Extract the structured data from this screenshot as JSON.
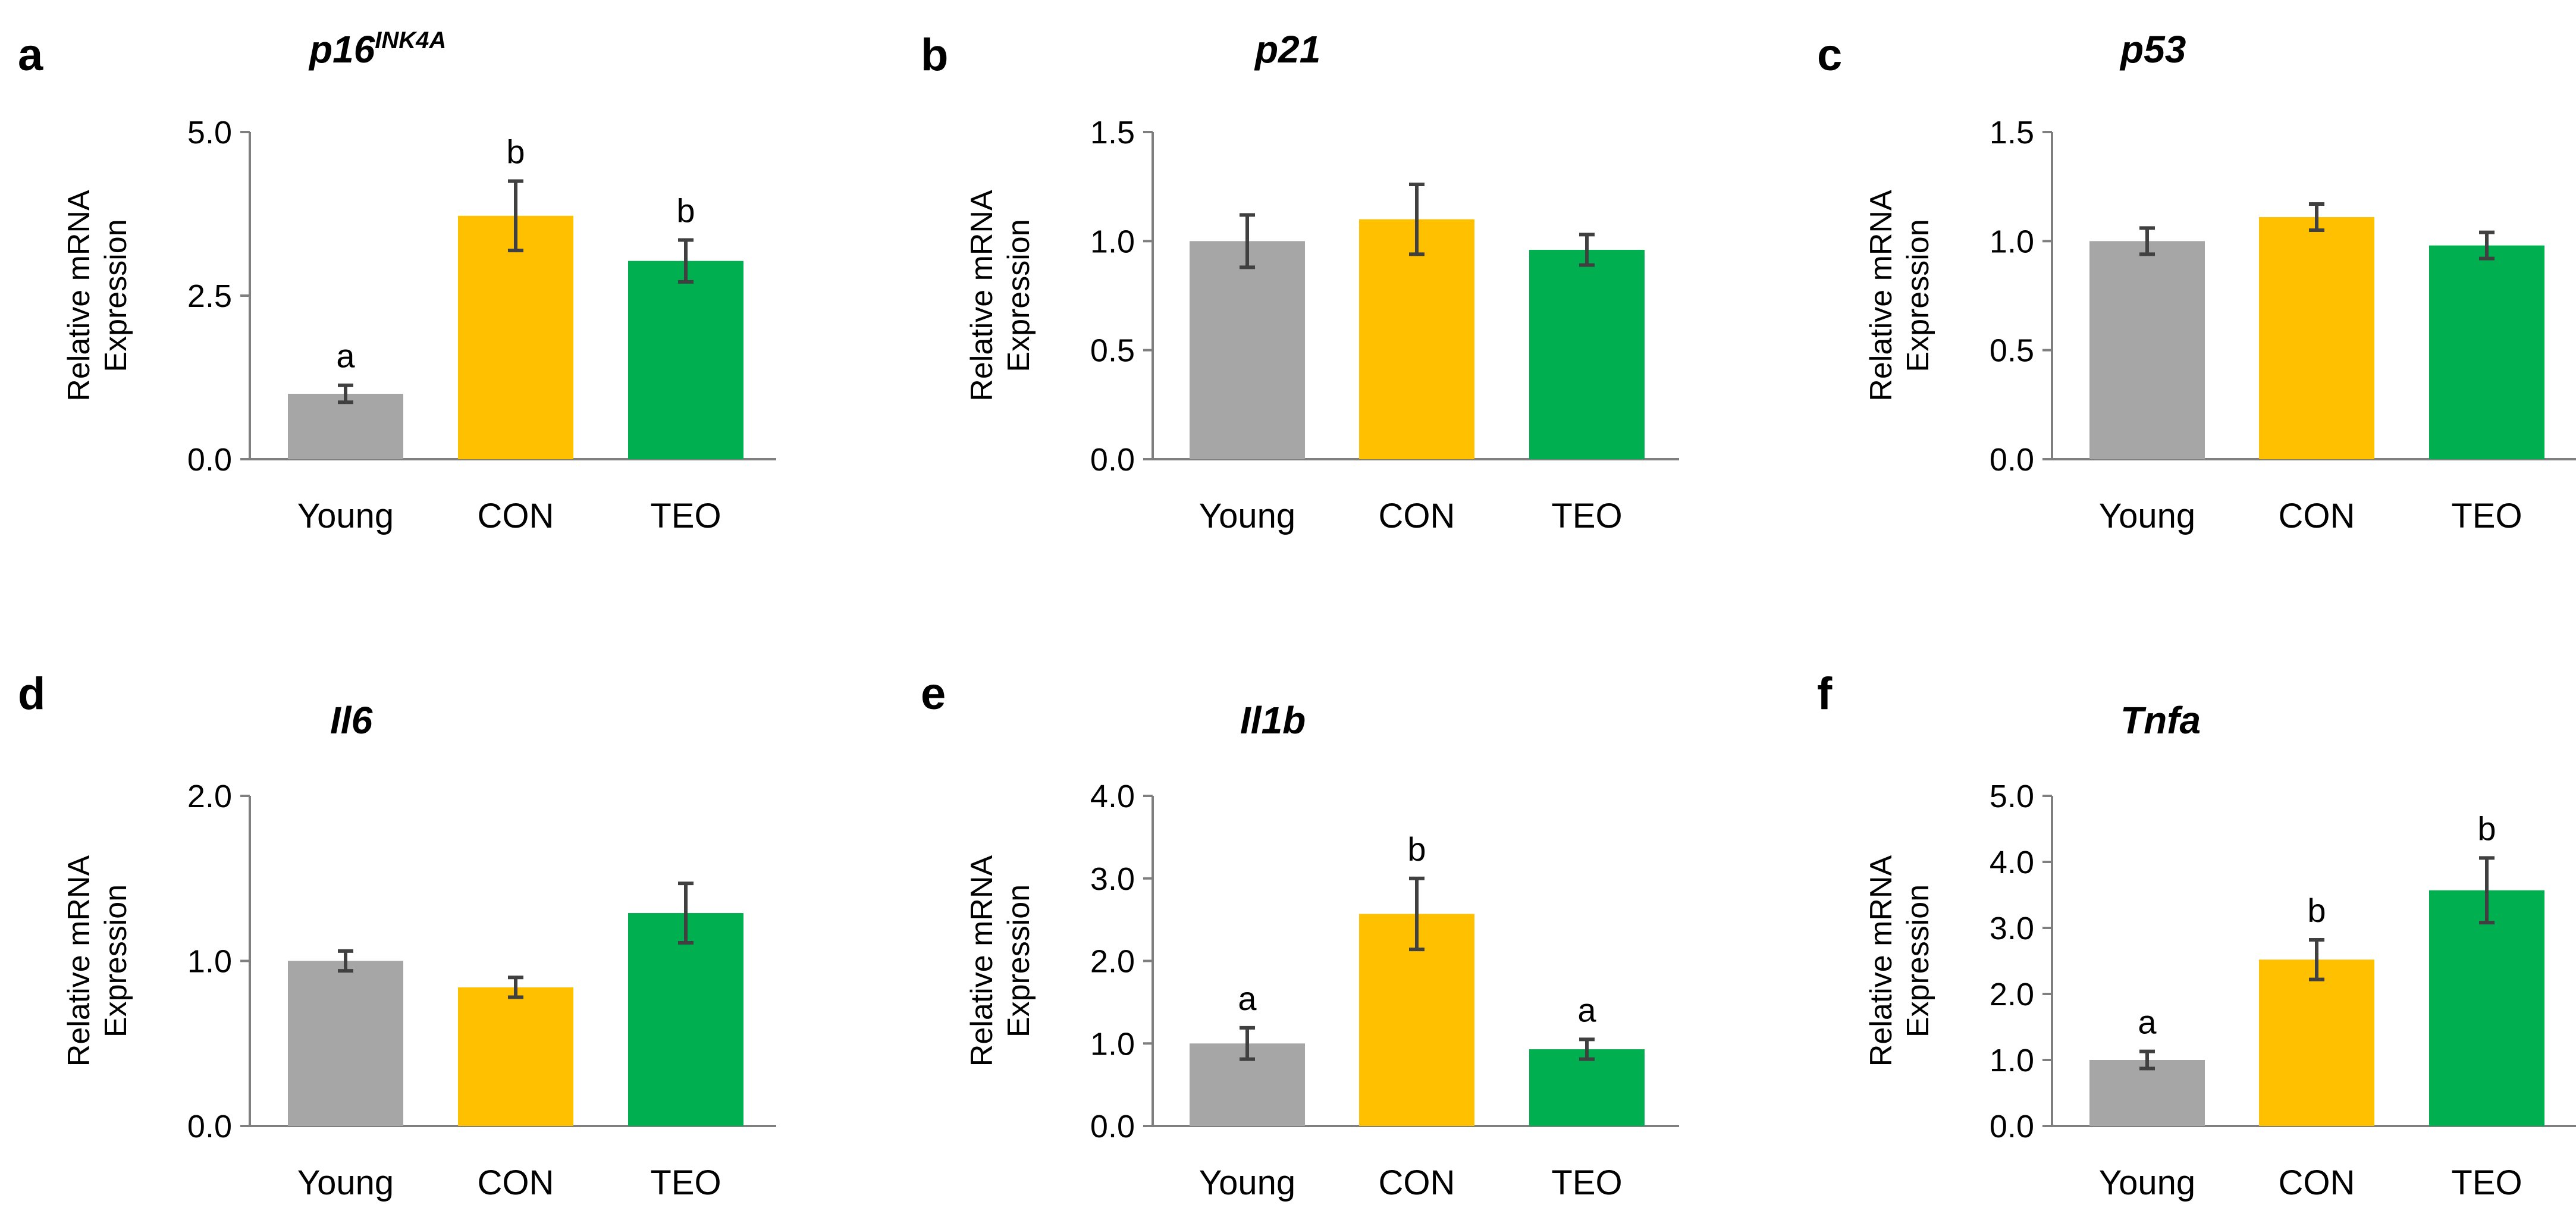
{
  "chart_data": [
    {
      "type": "bar",
      "panel": "a",
      "title": "p16",
      "title_sup": "INK4A",
      "ylabel": [
        "Relative mRNA",
        "Expression"
      ],
      "categories": [
        "Young",
        "CON",
        "TEO"
      ],
      "values": [
        1.0,
        3.72,
        3.03
      ],
      "errors": [
        0.13,
        0.53,
        0.32
      ],
      "letters": [
        "a",
        "b",
        "b"
      ],
      "ylim": [
        0,
        5
      ],
      "ticks": [
        "0.0",
        "2.5",
        "5.0"
      ],
      "tick_values": [
        0,
        2.5,
        5
      ]
    },
    {
      "type": "bar",
      "panel": "b",
      "title": "p21",
      "title_sup": "",
      "ylabel": [
        "Relative mRNA",
        "Expression"
      ],
      "categories": [
        "Young",
        "CON",
        "TEO"
      ],
      "values": [
        1.0,
        1.1,
        0.96
      ],
      "errors": [
        0.12,
        0.16,
        0.07
      ],
      "letters": [
        "",
        "",
        ""
      ],
      "ylim": [
        0,
        1.5
      ],
      "ticks": [
        "0.0",
        "0.5",
        "1.0",
        "1.5"
      ],
      "tick_values": [
        0,
        0.5,
        1.0,
        1.5
      ]
    },
    {
      "type": "bar",
      "panel": "c",
      "title": "p53",
      "title_sup": "",
      "ylabel": [
        "Relative mRNA",
        "Expression"
      ],
      "categories": [
        "Young",
        "CON",
        "TEO"
      ],
      "values": [
        1.0,
        1.11,
        0.98
      ],
      "errors": [
        0.06,
        0.06,
        0.06
      ],
      "letters": [
        "",
        "",
        ""
      ],
      "ylim": [
        0,
        1.5
      ],
      "ticks": [
        "0.0",
        "0.5",
        "1.0",
        "1.5"
      ],
      "tick_values": [
        0,
        0.5,
        1.0,
        1.5
      ]
    },
    {
      "type": "bar",
      "panel": "d",
      "title": "Il6",
      "title_sup": "",
      "ylabel": [
        "Relative mRNA",
        "Expression"
      ],
      "categories": [
        "Young",
        "CON",
        "TEO"
      ],
      "values": [
        1.0,
        0.84,
        1.29
      ],
      "errors": [
        0.06,
        0.06,
        0.18
      ],
      "letters": [
        "",
        "",
        ""
      ],
      "ylim": [
        0,
        2
      ],
      "ticks": [
        "0.0",
        "1.0",
        "2.0"
      ],
      "tick_values": [
        0,
        1.0,
        2.0
      ]
    },
    {
      "type": "bar",
      "panel": "e",
      "title": "Il1b",
      "title_sup": "",
      "ylabel": [
        "Relative mRNA",
        "Expression"
      ],
      "categories": [
        "Young",
        "CON",
        "TEO"
      ],
      "values": [
        1.0,
        2.57,
        0.93
      ],
      "errors": [
        0.19,
        0.43,
        0.12
      ],
      "letters": [
        "a",
        "b",
        "a"
      ],
      "ylim": [
        0,
        4
      ],
      "ticks": [
        "0.0",
        "1.0",
        "2.0",
        "3.0",
        "4.0"
      ],
      "tick_values": [
        0,
        1.0,
        2.0,
        3.0,
        4.0
      ]
    },
    {
      "type": "bar",
      "panel": "f",
      "title": "Tnfa",
      "title_sup": "",
      "ylabel": [
        "Relative mRNA",
        "Expression"
      ],
      "categories": [
        "Young",
        "CON",
        "TEO"
      ],
      "values": [
        1.0,
        2.52,
        3.57
      ],
      "errors": [
        0.13,
        0.3,
        0.49
      ],
      "letters": [
        "a",
        "b",
        "b"
      ],
      "ylim": [
        0,
        5
      ],
      "ticks": [
        "0.0",
        "1.0",
        "2.0",
        "3.0",
        "4.0",
        "5.0"
      ],
      "tick_values": [
        0,
        1.0,
        2.0,
        3.0,
        4.0,
        5.0
      ]
    }
  ],
  "colors": {
    "Young": "#a6a6a6",
    "CON": "#ffc000",
    "TEO": "#00b050",
    "axis": "#7f7f7f",
    "error_bar": "#404040"
  }
}
